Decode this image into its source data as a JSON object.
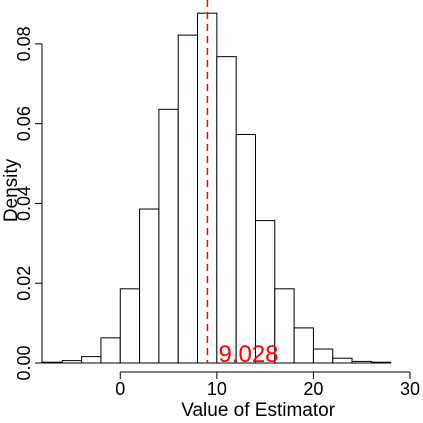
{
  "chart_data": {
    "type": "histogram",
    "xlabel": "Value of Estimator",
    "ylabel": "Density",
    "xlim": [
      -8,
      30
    ],
    "ylim": [
      0,
      0.089
    ],
    "x_ticks": [
      0,
      10,
      20,
      30
    ],
    "y_ticks": [
      0.0,
      0.02,
      0.04,
      0.06,
      0.08
    ],
    "y_tick_labels": [
      "0.00",
      "0.02",
      "0.04",
      "0.06",
      "0.08"
    ],
    "bin_width": 2,
    "bins": [
      {
        "start": -8,
        "end": -6,
        "density": 0.0002
      },
      {
        "start": -6,
        "end": -4,
        "density": 0.0006
      },
      {
        "start": -4,
        "end": -2,
        "density": 0.0016
      },
      {
        "start": -2,
        "end": 0,
        "density": 0.0063
      },
      {
        "start": 0,
        "end": 2,
        "density": 0.0186
      },
      {
        "start": 2,
        "end": 4,
        "density": 0.0386
      },
      {
        "start": 4,
        "end": 6,
        "density": 0.0636
      },
      {
        "start": 6,
        "end": 8,
        "density": 0.0822
      },
      {
        "start": 8,
        "end": 10,
        "density": 0.0877
      },
      {
        "start": 10,
        "end": 12,
        "density": 0.0768
      },
      {
        "start": 12,
        "end": 14,
        "density": 0.0573
      },
      {
        "start": 14,
        "end": 16,
        "density": 0.0357
      },
      {
        "start": 16,
        "end": 18,
        "density": 0.0186
      },
      {
        "start": 18,
        "end": 20,
        "density": 0.0088
      },
      {
        "start": 20,
        "end": 22,
        "density": 0.0035
      },
      {
        "start": 22,
        "end": 24,
        "density": 0.0012
      },
      {
        "start": 24,
        "end": 26,
        "density": 0.0004
      },
      {
        "start": 26,
        "end": 28,
        "density": 0.0002
      }
    ],
    "reference_line": {
      "x": 9.028,
      "label": "9.028",
      "color": "#ff0000",
      "style": "dashed"
    },
    "grid": false,
    "legend": "none"
  }
}
